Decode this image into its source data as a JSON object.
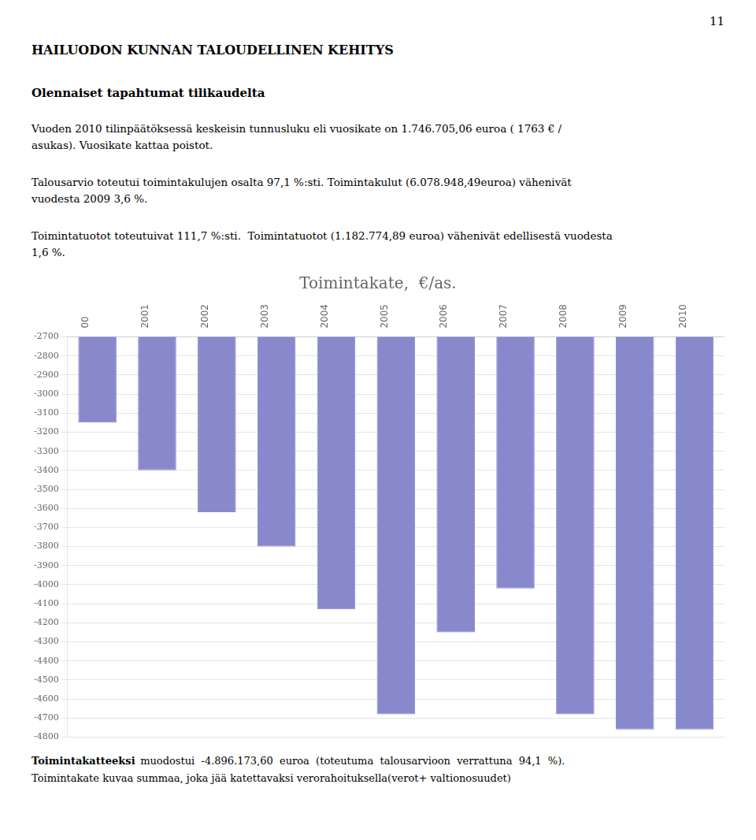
{
  "page_number": "11",
  "heading": "HAILUODON KUNNAN TALOUDELLINEN KEHITYS",
  "subheading": "Olennaiset tapahtumat tilikaudelta",
  "paragraphs": [
    [
      "Vuoden 2010 tilinpäätöksessä keskeisin tunnusluku eli vuosikate on 1.746.705,06 euroa ( 1763 € /",
      "asukas). Vuosikate kattaa poistot."
    ],
    [
      "Talousarvio toteutui toimintakulujen osalta 97,1 %:sti. Toimintakulut (6.078.948,49euroa) vähenivät",
      "vuodesta 2009 3,6 %."
    ],
    [
      "Toimintatuotot toteutuivat 111,7 %:sti.  Toimintatuotot (1.182.774,89 euroa) vähenivät edellisestä vuodesta",
      "1,6 %."
    ]
  ],
  "footer": [
    [
      "Toimintakatteeksi",
      "muodostui  -4.896.173,60  euroa  (toteutuma  talousarvioon  verrattuna  94,1  %)."
    ],
    [
      "Toimintakate kuvaa summaa, joka jää katettavaksi verorahoituksella(verot+ valtionosuudet)"
    ]
  ],
  "chart_data": {
    "type": "bar",
    "title": "Toimintakate,  €/as.",
    "categories": [
      "00",
      "2001",
      "2002",
      "2003",
      "2004",
      "2005",
      "2006",
      "2007",
      "2008",
      "2009",
      "2010"
    ],
    "values": [
      -3150,
      -3400,
      -3620,
      -3800,
      -4130,
      -4680,
      -4250,
      -4020,
      -4680,
      -4760,
      -4760
    ],
    "color": "#8888cc",
    "ylim": [
      -4800,
      -2700
    ],
    "yticks": [
      -4800,
      -4700,
      -4600,
      -4500,
      -4400,
      -4300,
      -4200,
      -4100,
      -4000,
      -3900,
      -3800,
      -3700,
      -3600,
      -3500,
      -3400,
      -3300,
      -3200,
      -3100,
      -3000,
      -2900,
      -2800,
      -2700
    ],
    "grid": true
  }
}
